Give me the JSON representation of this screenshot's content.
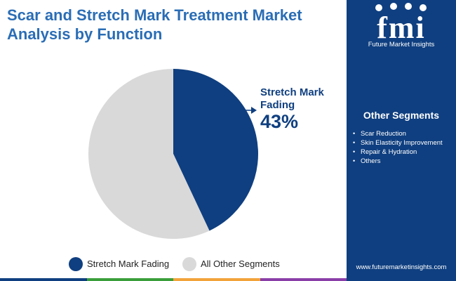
{
  "header": {
    "title": "Scar and Stretch Mark Treatment Market Analysis by Function"
  },
  "brand": {
    "logo_letters": "fmi",
    "name": "Future Market Insights",
    "url": "www.futuremarketinsights.com"
  },
  "sidebar": {
    "segments_title": "Other Segments",
    "segments": [
      "Scar Reduction",
      "Skin Elasticity Improvement",
      "Repair & Hydration",
      "Others"
    ]
  },
  "callout": {
    "label": "Stretch Mark Fading",
    "value": "43%"
  },
  "colors": {
    "title": "#2a6db5",
    "sidebar": "#0f3f80",
    "primary_slice": "#0f3f80",
    "other_slice": "#d9d9d9",
    "bottom_bar": [
      "#0f3f80",
      "#3a9e3a",
      "#f2a33a",
      "#8a3fa8"
    ]
  },
  "chart_data": {
    "type": "pie",
    "slices": [
      {
        "label": "Stretch Mark Fading",
        "value": 43,
        "color": "#0f3f80"
      },
      {
        "label": "All Other Segments",
        "value": 57,
        "color": "#d9d9d9"
      }
    ],
    "legend_position": "bottom",
    "legend": [
      "Stretch Mark Fading",
      "All Other Segments"
    ]
  }
}
